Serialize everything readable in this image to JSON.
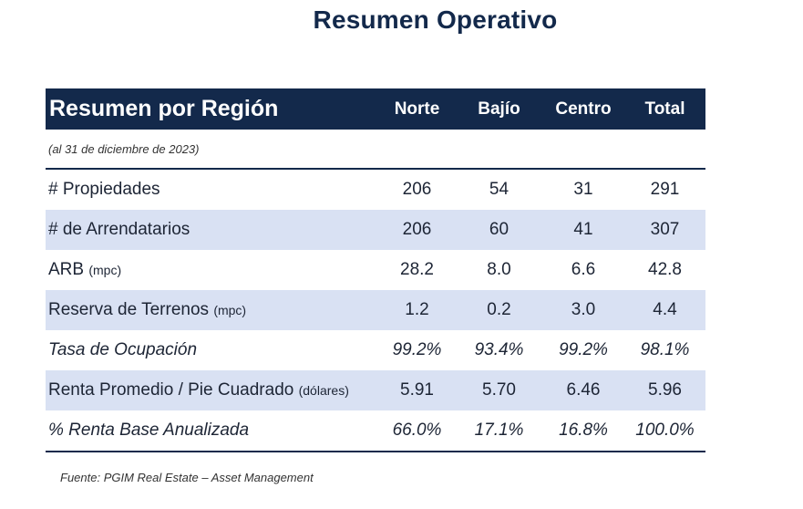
{
  "page": {
    "title": "Resumen Operativo",
    "source": "Fuente: PGIM Real Estate – Asset Management"
  },
  "table": {
    "header": {
      "label": "Resumen por Región",
      "columns": [
        "Norte",
        "Bajío",
        "Centro",
        "Total"
      ]
    },
    "subtitle": "(al 31 de diciembre de 2023)",
    "rows": [
      {
        "label": "# Propiedades",
        "unit": "",
        "values": [
          "206",
          "54",
          "31",
          "291"
        ]
      },
      {
        "label": "# de Arrendatarios",
        "unit": "",
        "values": [
          "206",
          "60",
          "41",
          "307"
        ]
      },
      {
        "label": "ARB",
        "unit": "(mpc)",
        "values": [
          "28.2",
          "8.0",
          "6.6",
          "42.8"
        ]
      },
      {
        "label": "Reserva de Terrenos",
        "unit": "(mpc)",
        "values": [
          "1.2",
          "0.2",
          "3.0",
          "4.4"
        ]
      },
      {
        "label": "Tasa de Ocupación",
        "unit": "",
        "values": [
          "99.2%",
          "93.4%",
          "99.2%",
          "98.1%"
        ]
      },
      {
        "label": "Renta Promedio / Pie Cuadrado",
        "unit": "(dólares)",
        "values": [
          "5.91",
          "5.70",
          "6.46",
          "5.96"
        ]
      },
      {
        "label": "% Renta Base Anualizada",
        "unit": "",
        "values": [
          "66.0%",
          "17.1%",
          "16.8%",
          "100.0%"
        ]
      }
    ]
  },
  "colors": {
    "header_bg": "#13294b",
    "row_shade": "#d9e1f3"
  }
}
